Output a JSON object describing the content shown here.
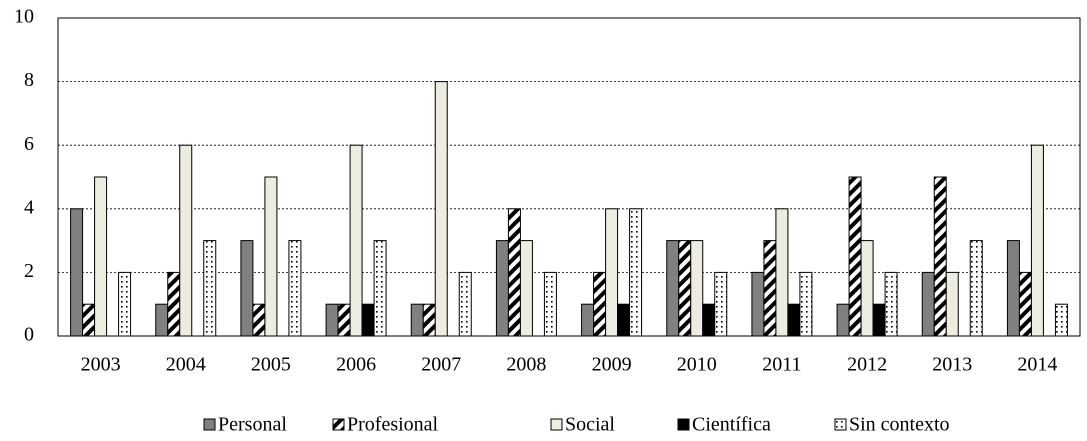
{
  "chart_data": {
    "type": "bar",
    "categories": [
      "2003",
      "2004",
      "2005",
      "2006",
      "2007",
      "2008",
      "2009",
      "2010",
      "2011",
      "2012",
      "2013",
      "2014"
    ],
    "series": [
      {
        "name": "Personal",
        "color": "#808080",
        "pattern": "solid",
        "values": [
          4,
          1,
          3,
          1,
          1,
          3,
          1,
          3,
          2,
          1,
          2,
          3
        ]
      },
      {
        "name": "Profesional",
        "color": "#000000",
        "pattern": "diagonal",
        "values": [
          1,
          2,
          1,
          1,
          1,
          4,
          2,
          3,
          3,
          5,
          5,
          2
        ]
      },
      {
        "name": "Social",
        "color": "#eeece1",
        "pattern": "solid",
        "values": [
          5,
          6,
          5,
          6,
          8,
          3,
          4,
          3,
          4,
          3,
          2,
          6
        ]
      },
      {
        "name": "Científica",
        "color": "#000000",
        "pattern": "solid",
        "values": [
          0,
          0,
          0,
          1,
          0,
          0,
          1,
          1,
          1,
          1,
          0,
          0
        ]
      },
      {
        "name": "Sin contexto",
        "color": "#000000",
        "pattern": "dots",
        "values": [
          2,
          3,
          3,
          3,
          2,
          2,
          4,
          2,
          2,
          2,
          3,
          1
        ]
      }
    ],
    "ylim": [
      0,
      10
    ],
    "yticks": [
      0,
      2,
      4,
      6,
      8,
      10
    ],
    "grid": true,
    "legend": "bottom"
  }
}
